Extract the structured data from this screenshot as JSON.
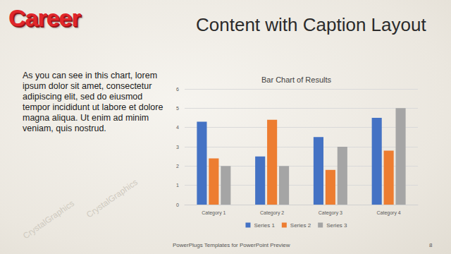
{
  "slide": {
    "logo": "Career",
    "title": "Content with Caption Layout",
    "caption": "As you can see in this chart, lorem ipsum dolor sit amet, consectetur adipiscing elit, sed do eiusmod tempor incididunt ut labore et dolore magna aliqua. Ut enim ad minim veniam, quis nostrud.",
    "footer": "PowerPlugs Templates for PowerPoint Preview",
    "page": 8,
    "watermark": "CrystalGraphics"
  },
  "chart_data": {
    "type": "bar",
    "title": "Bar Chart of Results",
    "categories": [
      "Category 1",
      "Category 2",
      "Category 3",
      "Category 4"
    ],
    "series": [
      {
        "name": "Series 1",
        "color": "#4472c4",
        "values": [
          4.3,
          2.5,
          3.5,
          4.5
        ]
      },
      {
        "name": "Series 2",
        "color": "#ed7d31",
        "values": [
          2.4,
          4.4,
          1.8,
          2.8
        ]
      },
      {
        "name": "Series 3",
        "color": "#a5a5a5",
        "values": [
          2,
          2,
          3,
          5
        ]
      }
    ],
    "ylim": [
      0,
      6
    ],
    "yticks": [
      0,
      1,
      2,
      3,
      4,
      5,
      6
    ],
    "grid": true,
    "legend": "bottom"
  }
}
